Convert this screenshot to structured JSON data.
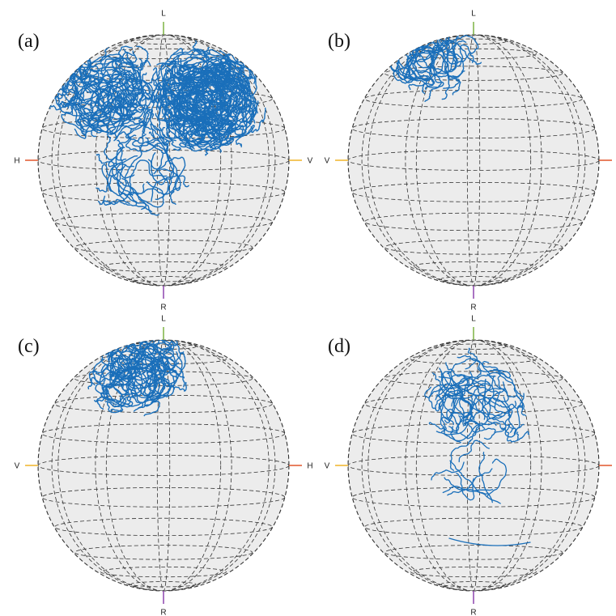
{
  "panels": [
    {
      "label": "(a)",
      "axes": {
        "top": "L",
        "bottom": "R",
        "left": "H",
        "right": "V"
      }
    },
    {
      "label": "(b)",
      "axes": {
        "top": "L",
        "bottom": "R",
        "left": "V"
      }
    },
    {
      "label": "(c)",
      "axes": {
        "top": "L",
        "bottom": "R",
        "left": "V",
        "right": "H"
      }
    },
    {
      "label": "(d)",
      "axes": {
        "top": "L",
        "bottom": "R",
        "left": "V"
      }
    }
  ]
}
